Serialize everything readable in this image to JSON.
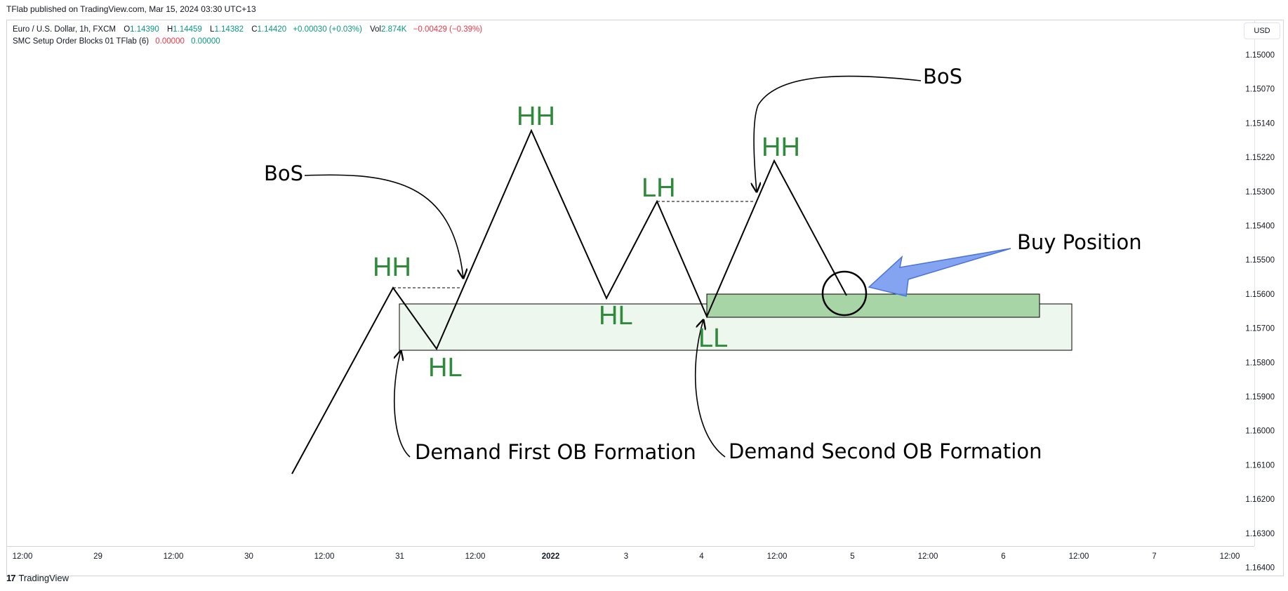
{
  "header": {
    "published": "TFlab published on TradingView.com, Mar 15, 2024 03:30 UTC+13"
  },
  "legend": {
    "symbol": "Euro / U.S. Dollar, 1h, FXCM",
    "open_label": "O",
    "open": "1.14390",
    "high_label": "H",
    "high": "1.14459",
    "low_label": "L",
    "low": "1.14382",
    "close_label": "C",
    "close": "1.14420",
    "change": "+0.00030 (+0.03%)",
    "vol_label": "Vol",
    "vol": "2.874K",
    "vol_change": "−0.00429 (−0.39%)",
    "indicator": "SMC Setup Order Blocks 01 TFlab (6)",
    "indicator_v1": "0.00000",
    "indicator_v2": "0.00000"
  },
  "currency_button": "USD",
  "footer": {
    "brand": "TradingView",
    "logo": "17"
  },
  "colors": {
    "label_green": "#2e8b3a",
    "box_light": "#eef7ee",
    "box_dark": "#a8d5a6",
    "arrow_blue": "#6f94ee"
  },
  "chart_data": {
    "type": "line",
    "ylim": [
      1.1505,
      1.1645
    ],
    "y_inverted": true,
    "y_ticks": [
      "1.15000",
      "1.15070",
      "1.15140",
      "1.15220",
      "1.15300",
      "1.15400",
      "1.15500",
      "1.15600",
      "1.15700",
      "1.15800",
      "1.15900",
      "1.16000",
      "1.16100",
      "1.16200",
      "1.16300",
      "1.16400"
    ],
    "x_ticks": [
      "12:00",
      "29",
      "12:00",
      "30",
      "12:00",
      "31",
      "12:00",
      "2022",
      "3",
      "4",
      "12:00",
      "5",
      "12:00",
      "6",
      "12:00",
      "7",
      "12:00"
    ],
    "x_ticks_bold": [
      7
    ],
    "series": [
      {
        "x": [
          0,
          1.33,
          1.93,
          3.14,
          3.87,
          4.47,
          5.17,
          6.25,
          7.01
        ],
        "values": [
          1.162,
          1.1572,
          1.159,
          1.1523,
          1.1571,
          1.1546,
          1.1582,
          1.153,
          1.1566
        ]
      }
    ],
    "bos_levels": [
      {
        "y": 1.1572,
        "x_from": 1.33,
        "x_to": 2.22
      },
      {
        "y": 1.1546,
        "x_from": 4.47,
        "x_to": 5.77
      }
    ],
    "order_blocks": [
      {
        "label": "Demand First OB Formation",
        "y_top": 1.1575,
        "y_bottom": 1.1588,
        "x_from": 1.43,
        "x_to": 10.38
      },
      {
        "label": "Demand Second OB Formation",
        "y_top": 1.1572,
        "y_bottom": 1.1579,
        "x_from": 5.17,
        "x_to": 9.97
      }
    ],
    "swing_labels": [
      "HH",
      "HL",
      "HH",
      "HL",
      "LH",
      "LL",
      "HH"
    ],
    "annotations": [
      "BoS",
      "BoS",
      "Buy Position",
      "Demand First OB Formation",
      "Demand Second OB Formation"
    ]
  }
}
